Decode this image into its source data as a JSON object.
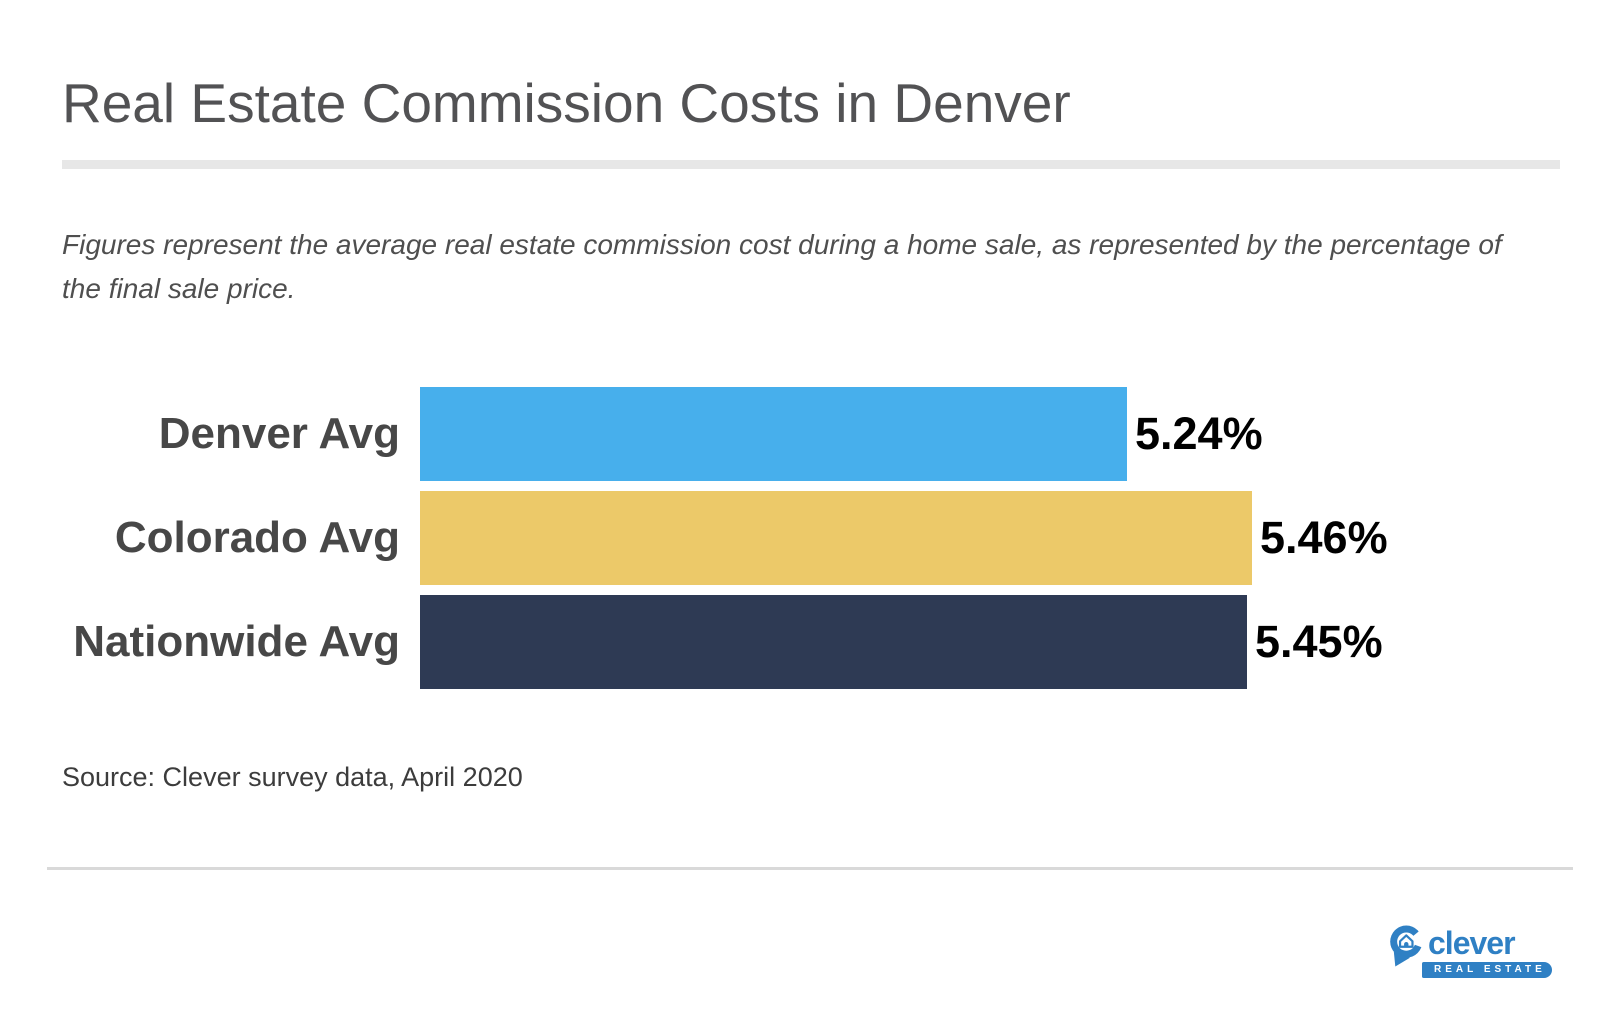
{
  "title": "Real Estate Commission Costs in Denver",
  "subtitle": "Figures represent the average real estate commission cost during a home sale, as represented by the percentage of the final sale price.",
  "source": "Source: Clever survey data, April 2020",
  "logo": {
    "wordmark": "clever",
    "tagline": "REAL ESTATE",
    "brand_color": "#2f80c4"
  },
  "colors": {
    "background": "#ffffff",
    "title_text": "#525254",
    "subtitle_text": "#4f4f4f",
    "category_label_text": "#474747",
    "value_label_text": "#000000",
    "title_rule": "#e7e7e7",
    "footer_rule": "#d9d9d9"
  },
  "chart_data": {
    "type": "bar",
    "orientation": "horizontal",
    "title": "Real Estate Commission Costs in Denver",
    "categories": [
      "Denver Avg",
      "Colorado Avg",
      "Nationwide Avg"
    ],
    "values": [
      5.24,
      5.46,
      5.45
    ],
    "value_labels": [
      "5.24%",
      "5.46%",
      "5.45%"
    ],
    "bar_colors": [
      "#47AFEC",
      "#ECC969",
      "#2E3A54"
    ],
    "xlim": [
      4.0,
      5.6
    ],
    "xlabel": "",
    "ylabel": "",
    "grid": false,
    "legend": false
  }
}
